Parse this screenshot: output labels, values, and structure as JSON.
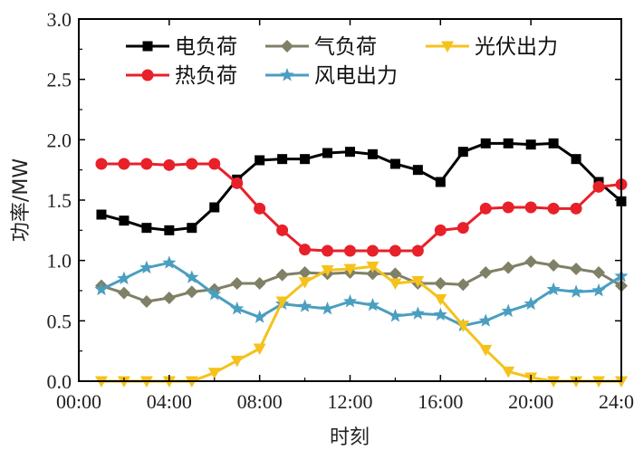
{
  "chart_data": {
    "type": "line",
    "xlabel": "时刻",
    "ylabel": "功率/MW",
    "xlim": [
      0,
      24
    ],
    "ylim": [
      0,
      3
    ],
    "x_ticks": [
      0,
      4,
      8,
      12,
      16,
      20,
      24
    ],
    "x_tick_labels": [
      "00:00",
      "04:00",
      "08:00",
      "12:00",
      "16:00",
      "20:00",
      "24:00"
    ],
    "y_ticks": [
      0,
      0.5,
      1,
      1.5,
      2,
      2.5,
      3
    ],
    "y_tick_labels": [
      "0.0",
      "0.5",
      "1.0",
      "1.5",
      "2.0",
      "2.5",
      "3.0"
    ],
    "grid": false,
    "legend_position": "top",
    "x": [
      1,
      2,
      3,
      4,
      5,
      6,
      7,
      8,
      9,
      10,
      11,
      12,
      13,
      14,
      15,
      16,
      17,
      18,
      19,
      20,
      21,
      22,
      23,
      24
    ],
    "series": [
      {
        "name": "电负荷",
        "color": "#000000",
        "marker": "square",
        "values": [
          1.38,
          1.33,
          1.27,
          1.25,
          1.27,
          1.44,
          1.67,
          1.83,
          1.84,
          1.84,
          1.89,
          1.9,
          1.88,
          1.8,
          1.75,
          1.65,
          1.9,
          1.97,
          1.97,
          1.96,
          1.97,
          1.84,
          1.65,
          1.49
        ]
      },
      {
        "name": "热负荷",
        "color": "#e8202a",
        "marker": "circle",
        "values": [
          1.8,
          1.8,
          1.8,
          1.79,
          1.8,
          1.8,
          1.64,
          1.43,
          1.25,
          1.09,
          1.08,
          1.08,
          1.08,
          1.08,
          1.08,
          1.25,
          1.27,
          1.43,
          1.44,
          1.44,
          1.43,
          1.43,
          1.61,
          1.63
        ]
      },
      {
        "name": "气负荷",
        "color": "#808067",
        "marker": "diamond",
        "values": [
          0.79,
          0.73,
          0.66,
          0.69,
          0.74,
          0.76,
          0.81,
          0.81,
          0.88,
          0.9,
          0.89,
          0.9,
          0.89,
          0.89,
          0.81,
          0.81,
          0.8,
          0.9,
          0.94,
          0.99,
          0.96,
          0.93,
          0.9,
          0.79
        ]
      },
      {
        "name": "风电出力",
        "color": "#4a9ec0",
        "marker": "star",
        "values": [
          0.76,
          0.85,
          0.94,
          0.98,
          0.86,
          0.72,
          0.6,
          0.53,
          0.64,
          0.62,
          0.6,
          0.66,
          0.63,
          0.54,
          0.56,
          0.55,
          0.46,
          0.5,
          0.58,
          0.64,
          0.76,
          0.74,
          0.75,
          0.87
        ]
      },
      {
        "name": "光伏出力",
        "color": "#f5c21b",
        "marker": "triangle-down",
        "values": [
          0.0,
          0.0,
          0.0,
          0.0,
          0.0,
          0.07,
          0.17,
          0.27,
          0.66,
          0.82,
          0.92,
          0.93,
          0.95,
          0.81,
          0.83,
          0.68,
          0.46,
          0.26,
          0.08,
          0.03,
          0.0,
          0.0,
          0.0,
          0.0
        ]
      }
    ]
  }
}
